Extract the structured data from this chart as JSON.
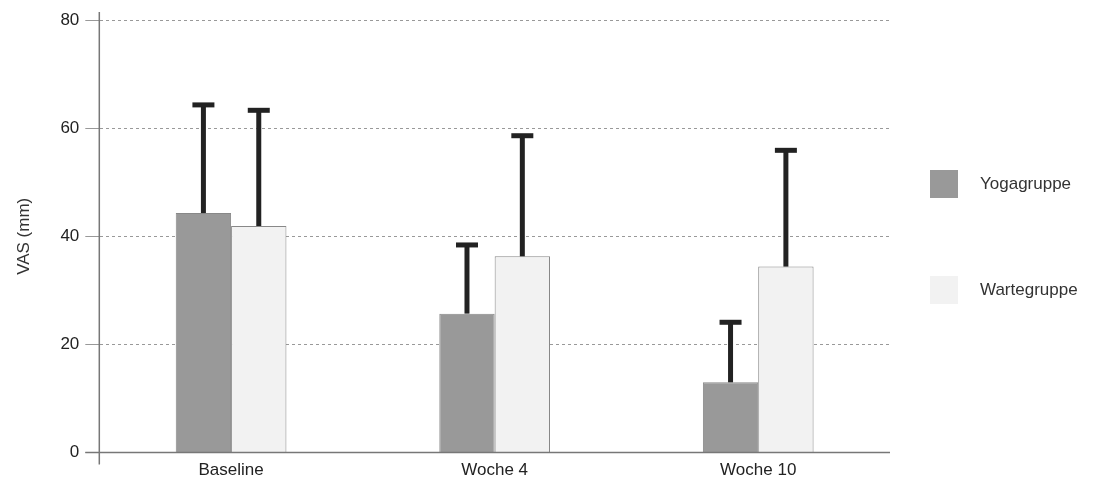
{
  "chart_data": {
    "type": "bar",
    "ylabel": "VAS (mm)",
    "categories": [
      "Baseline",
      "Woche 4",
      "Woche 10"
    ],
    "series": [
      {
        "name": "Yogagruppe",
        "color": "#999999",
        "values": [
          44.3,
          25.7,
          13.0
        ],
        "errors": [
          [
            44.3,
            64.3
          ],
          [
            25.7,
            38.4
          ],
          [
            13.0,
            24.1
          ]
        ]
      },
      {
        "name": "Wartegruppe",
        "color": "#f2f2f2",
        "values": [
          41.9,
          36.3,
          34.4
        ],
        "errors": [
          [
            41.9,
            63.3
          ],
          [
            36.3,
            58.6
          ],
          [
            34.4,
            55.9
          ]
        ]
      }
    ],
    "ylim": [
      0,
      80
    ],
    "yticks": [
      0,
      20,
      40,
      60,
      80
    ],
    "grid": "y",
    "legend": "right"
  }
}
